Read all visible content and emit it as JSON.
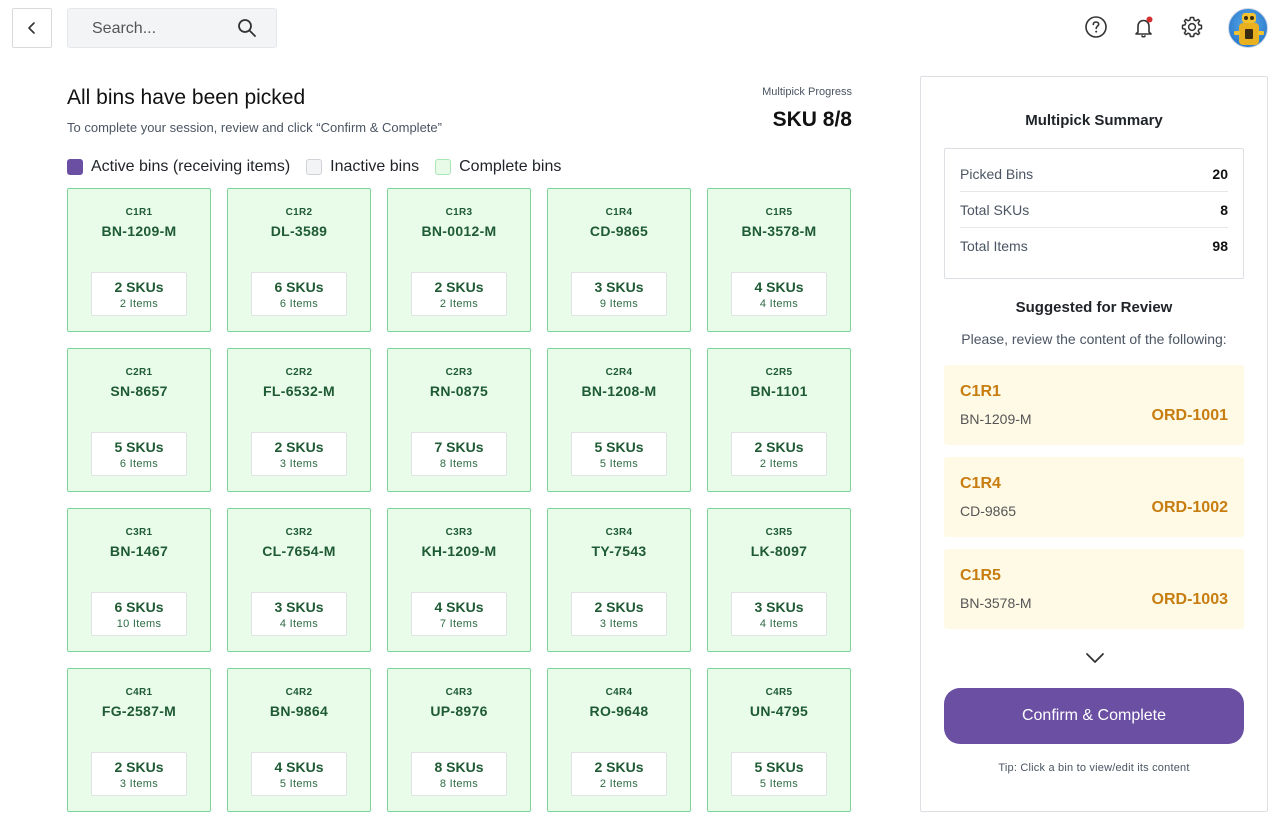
{
  "search": {
    "placeholder": "Search..."
  },
  "header": {
    "title": "All bins have been picked",
    "subtitle": "To complete your session, review and click “Confirm & Complete”",
    "progress_label": "Multipick Progress",
    "progress_value": "SKU 8/8"
  },
  "legend": {
    "active": "Active bins (receiving items)",
    "inactive": "Inactive bins",
    "complete": "Complete bins"
  },
  "colors": {
    "accent": "#6a4fa3",
    "complete_bin_bg": "#e9fcea",
    "complete_bin_border": "#7fd39a",
    "review_card_bg": "#fffae6",
    "review_text": "#c77d10"
  },
  "bins": [
    {
      "code": "C1R1",
      "sku": "BN-1209-M",
      "skus": "2 SKUs",
      "items": "2 Items"
    },
    {
      "code": "C1R2",
      "sku": "DL-3589",
      "skus": "6 SKUs",
      "items": "6 Items"
    },
    {
      "code": "C1R3",
      "sku": "BN-0012-M",
      "skus": "2 SKUs",
      "items": "2 Items"
    },
    {
      "code": "C1R4",
      "sku": "CD-9865",
      "skus": "3 SKUs",
      "items": "9 Items"
    },
    {
      "code": "C1R5",
      "sku": "BN-3578-M",
      "skus": "4 SKUs",
      "items": "4 Items"
    },
    {
      "code": "C2R1",
      "sku": "SN-8657",
      "skus": "5 SKUs",
      "items": "6 Items"
    },
    {
      "code": "C2R2",
      "sku": "FL-6532-M",
      "skus": "2 SKUs",
      "items": "3 Items"
    },
    {
      "code": "C2R3",
      "sku": "RN-0875",
      "skus": "7 SKUs",
      "items": "8 Items"
    },
    {
      "code": "C2R4",
      "sku": "BN-1208-M",
      "skus": "5 SKUs",
      "items": "5 Items"
    },
    {
      "code": "C2R5",
      "sku": "BN-1101",
      "skus": "2 SKUs",
      "items": "2 Items"
    },
    {
      "code": "C3R1",
      "sku": "BN-1467",
      "skus": "6 SKUs",
      "items": "10 Items"
    },
    {
      "code": "C3R2",
      "sku": "CL-7654-M",
      "skus": "3 SKUs",
      "items": "4 Items"
    },
    {
      "code": "C3R3",
      "sku": "KH-1209-M",
      "skus": "4 SKUs",
      "items": "7 Items"
    },
    {
      "code": "C3R4",
      "sku": "TY-7543",
      "skus": "2 SKUs",
      "items": "3 Items"
    },
    {
      "code": "C3R5",
      "sku": "LK-8097",
      "skus": "3 SKUs",
      "items": "4 Items"
    },
    {
      "code": "C4R1",
      "sku": "FG-2587-M",
      "skus": "2 SKUs",
      "items": "3 Items"
    },
    {
      "code": "C4R2",
      "sku": "BN-9864",
      "skus": "4 SKUs",
      "items": "5 Items"
    },
    {
      "code": "C4R3",
      "sku": "UP-8976",
      "skus": "8 SKUs",
      "items": "8 Items"
    },
    {
      "code": "C4R4",
      "sku": "RO-9648",
      "skus": "2 SKUs",
      "items": "2 Items"
    },
    {
      "code": "C4R5",
      "sku": "UN-4795",
      "skus": "5 SKUs",
      "items": "5 Items"
    }
  ],
  "summary": {
    "title": "Multipick Summary",
    "stats": [
      {
        "label": "Picked Bins",
        "value": "20"
      },
      {
        "label": "Total SKUs",
        "value": "8"
      },
      {
        "label": "Total Items",
        "value": "98"
      }
    ],
    "suggest_title": "Suggested for Review",
    "suggest_sub": "Please, review the content of the following:",
    "suggestions": [
      {
        "bin": "C1R1",
        "sku": "BN-1209-M",
        "order": "ORD-1001"
      },
      {
        "bin": "C1R4",
        "sku": "CD-9865",
        "order": "ORD-1002"
      },
      {
        "bin": "C1R5",
        "sku": "BN-3578-M",
        "order": "ORD-1003"
      }
    ],
    "confirm_label": "Confirm & Complete",
    "tip": "Tip: Click a bin to view/edit its content"
  }
}
